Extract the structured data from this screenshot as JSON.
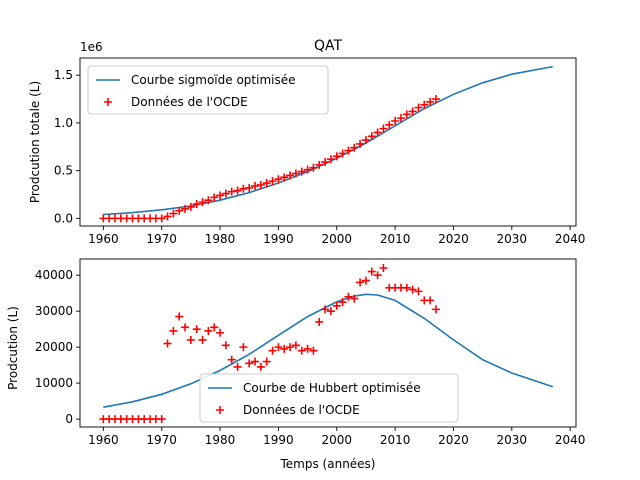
{
  "colors": {
    "curve": "#1f77b4",
    "points": "#ff0000",
    "axes": "#000000"
  },
  "chart_data": [
    {
      "type": "line",
      "title": "QAT",
      "xlabel": "",
      "ylabel": "Prodcution totale (L)",
      "offset_text": "1e6",
      "xlim": [
        1956,
        2041
      ],
      "ylim": [
        -0.08,
        1.68
      ],
      "xticks": [
        1960,
        1970,
        1980,
        1990,
        2000,
        2010,
        2020,
        2030,
        2040
      ],
      "yticks": [
        0.0,
        0.5,
        1.0,
        1.5
      ],
      "ytick_labels": [
        "0.0",
        "0.5",
        "1.0",
        "1.5"
      ],
      "legend_position": "upper-left",
      "series": [
        {
          "name": "Courbe sigmoïde optimisée",
          "kind": "line",
          "x": [
            1960,
            1965,
            1970,
            1975,
            1980,
            1985,
            1990,
            1995,
            2000,
            2005,
            2010,
            2015,
            2020,
            2025,
            2030,
            2037
          ],
          "y": [
            0.04,
            0.06,
            0.09,
            0.13,
            0.19,
            0.27,
            0.37,
            0.49,
            0.63,
            0.79,
            0.97,
            1.15,
            1.3,
            1.42,
            1.51,
            1.59
          ]
        },
        {
          "name": "Données de l'OCDE",
          "kind": "scatter",
          "x": [
            1960,
            1961,
            1962,
            1963,
            1964,
            1965,
            1966,
            1967,
            1968,
            1969,
            1970,
            1971,
            1972,
            1973,
            1974,
            1975,
            1976,
            1977,
            1978,
            1979,
            1980,
            1981,
            1982,
            1983,
            1984,
            1985,
            1986,
            1987,
            1988,
            1989,
            1990,
            1991,
            1992,
            1993,
            1994,
            1995,
            1996,
            1997,
            1998,
            1999,
            2000,
            2001,
            2002,
            2003,
            2004,
            2005,
            2006,
            2007,
            2008,
            2009,
            2010,
            2011,
            2012,
            2013,
            2014,
            2015,
            2016,
            2017
          ],
          "y": [
            0.0,
            0.0,
            0.0,
            0.0,
            0.0,
            0.0,
            0.0,
            0.0,
            0.0,
            0.0,
            0.0,
            0.02,
            0.05,
            0.08,
            0.1,
            0.12,
            0.15,
            0.17,
            0.19,
            0.22,
            0.24,
            0.26,
            0.28,
            0.29,
            0.31,
            0.32,
            0.34,
            0.35,
            0.37,
            0.39,
            0.41,
            0.43,
            0.45,
            0.47,
            0.49,
            0.51,
            0.53,
            0.56,
            0.59,
            0.62,
            0.65,
            0.68,
            0.71,
            0.74,
            0.78,
            0.82,
            0.86,
            0.9,
            0.94,
            0.98,
            1.02,
            1.05,
            1.09,
            1.12,
            1.16,
            1.19,
            1.22,
            1.25
          ]
        }
      ]
    },
    {
      "type": "line",
      "title": "",
      "xlabel": "Temps (années)",
      "ylabel": "Prodcution (L)",
      "xlim": [
        1956,
        2041
      ],
      "ylim": [
        -2200,
        44500
      ],
      "xticks": [
        1960,
        1970,
        1980,
        1990,
        2000,
        2010,
        2020,
        2030,
        2040
      ],
      "yticks": [
        0,
        10000,
        20000,
        30000,
        40000
      ],
      "ytick_labels": [
        "0",
        "10000",
        "20000",
        "30000",
        "40000"
      ],
      "legend_position": "lower-center",
      "series": [
        {
          "name": "Courbe de Hubbert optimisée",
          "kind": "line",
          "x": [
            1960,
            1965,
            1970,
            1975,
            1980,
            1985,
            1990,
            1995,
            2000,
            2003,
            2005,
            2007,
            2010,
            2015,
            2020,
            2025,
            2030,
            2037
          ],
          "y": [
            3300,
            4800,
            6900,
            9800,
            13500,
            18000,
            23300,
            28500,
            32600,
            34200,
            34700,
            34500,
            33000,
            28000,
            22000,
            16500,
            12800,
            9000
          ]
        },
        {
          "name": "Données de l'OCDE",
          "kind": "scatter",
          "x": [
            1960,
            1961,
            1962,
            1963,
            1964,
            1965,
            1966,
            1967,
            1968,
            1969,
            1970,
            1971,
            1972,
            1973,
            1974,
            1975,
            1976,
            1977,
            1978,
            1979,
            1980,
            1981,
            1982,
            1983,
            1984,
            1985,
            1986,
            1987,
            1988,
            1989,
            1990,
            1991,
            1992,
            1993,
            1994,
            1995,
            1996,
            1997,
            1998,
            1999,
            2000,
            2001,
            2002,
            2003,
            2004,
            2005,
            2006,
            2007,
            2008,
            2009,
            2010,
            2011,
            2012,
            2013,
            2014,
            2015,
            2016,
            2017
          ],
          "y": [
            0,
            0,
            0,
            0,
            0,
            0,
            0,
            0,
            0,
            0,
            0,
            21000,
            24500,
            28500,
            25500,
            22000,
            25000,
            22000,
            24500,
            25500,
            24000,
            20500,
            16500,
            14500,
            20000,
            15500,
            16000,
            14500,
            16000,
            19000,
            20000,
            19500,
            20000,
            20500,
            19000,
            19500,
            19000,
            27000,
            30500,
            30000,
            31500,
            32500,
            34000,
            33500,
            38000,
            38500,
            41000,
            40000,
            42000,
            36500,
            36500,
            36500,
            36500,
            36000,
            35500,
            33000,
            33000,
            30500
          ]
        }
      ]
    }
  ]
}
